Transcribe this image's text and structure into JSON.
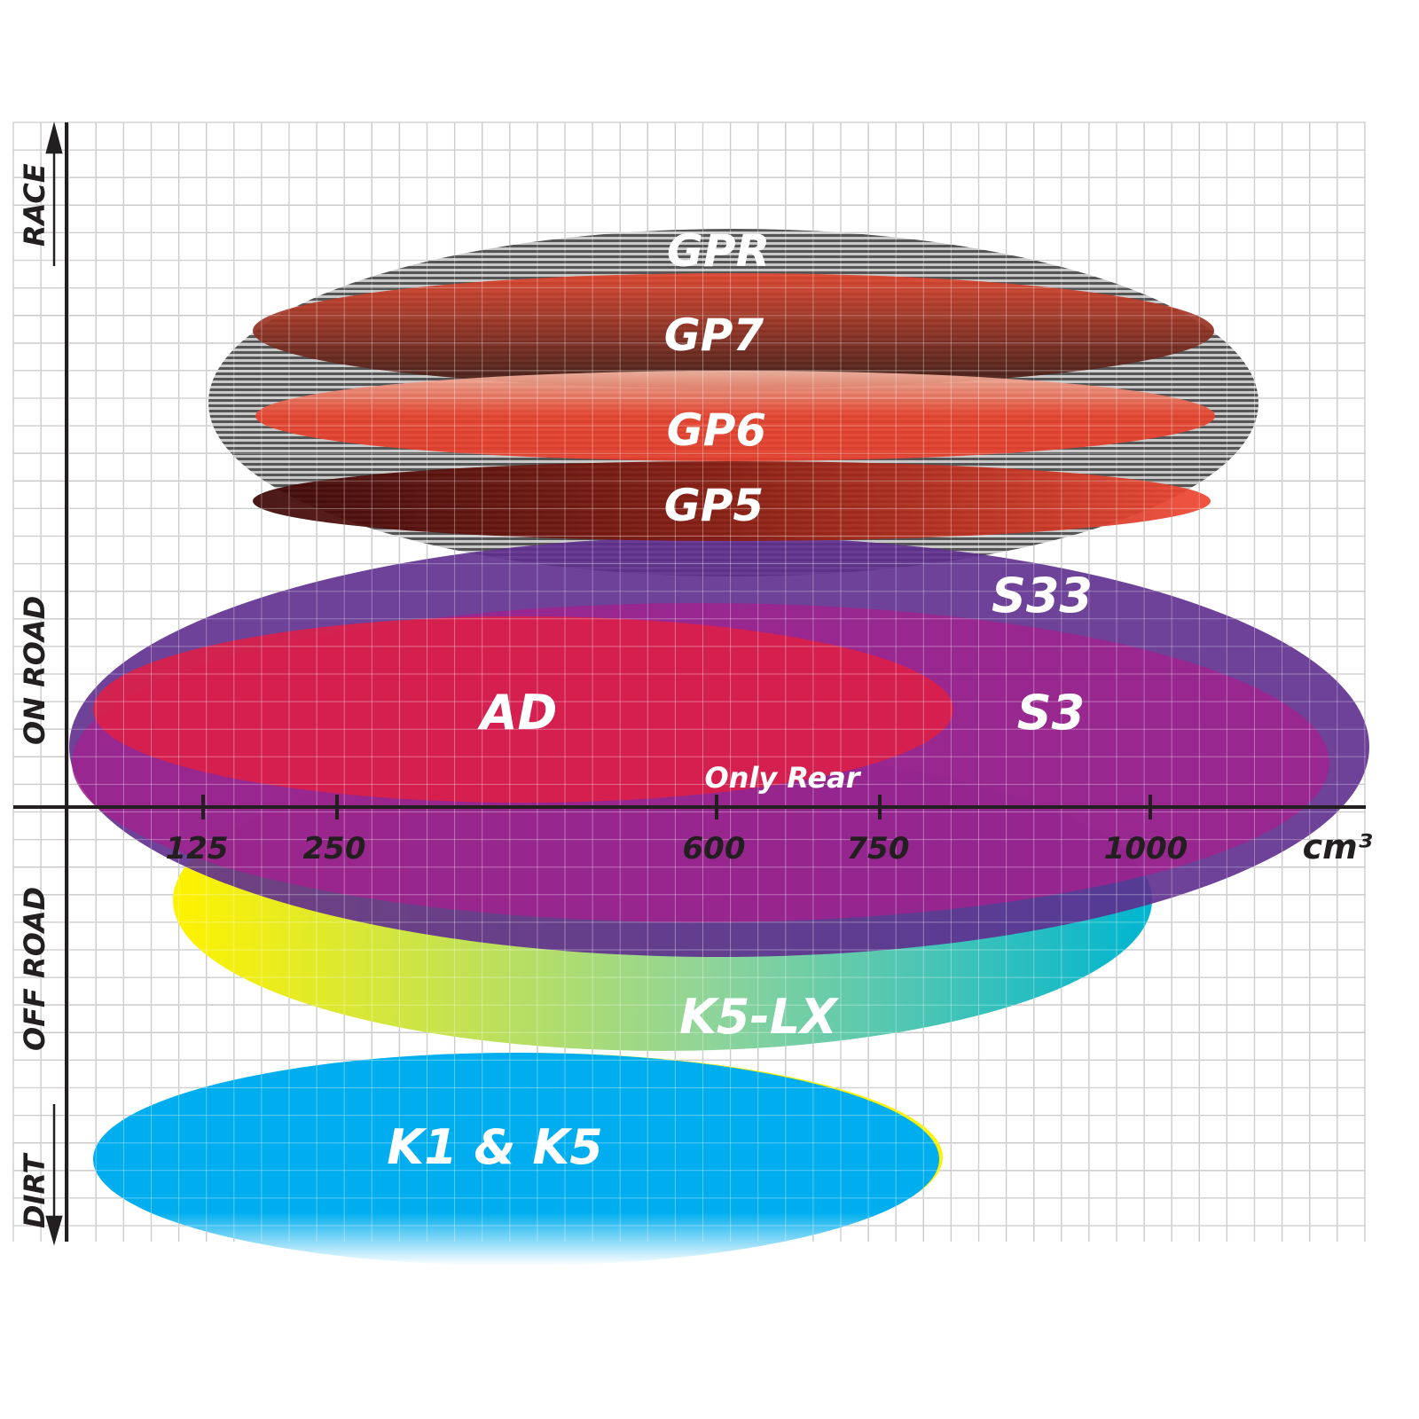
{
  "axes": {
    "y_labels": [
      "RACE",
      "ON ROAD",
      "OFF ROAD",
      "DIRT"
    ],
    "x_ticks": [
      "125",
      "250",
      "600",
      "750",
      "1000"
    ],
    "x_unit": "cm³"
  },
  "products": [
    {
      "name": "GPR",
      "color": "#9a9a9a"
    },
    {
      "name": "GP7",
      "color": "#8a2d1c"
    },
    {
      "name": "GP6",
      "color": "#e63d2c"
    },
    {
      "name": "GP5",
      "color": "#7a1010"
    },
    {
      "name": "S33",
      "color": "#5e2d8e"
    },
    {
      "name": "S3",
      "color": "#a0228e"
    },
    {
      "name": "AD",
      "color": "#dc1f48"
    },
    {
      "name": "K5-LX",
      "color": "#00b5d0"
    },
    {
      "name": "K1 & K5",
      "color": "#00aeef"
    }
  ],
  "annotations": {
    "only_rear": "Only Rear"
  }
}
